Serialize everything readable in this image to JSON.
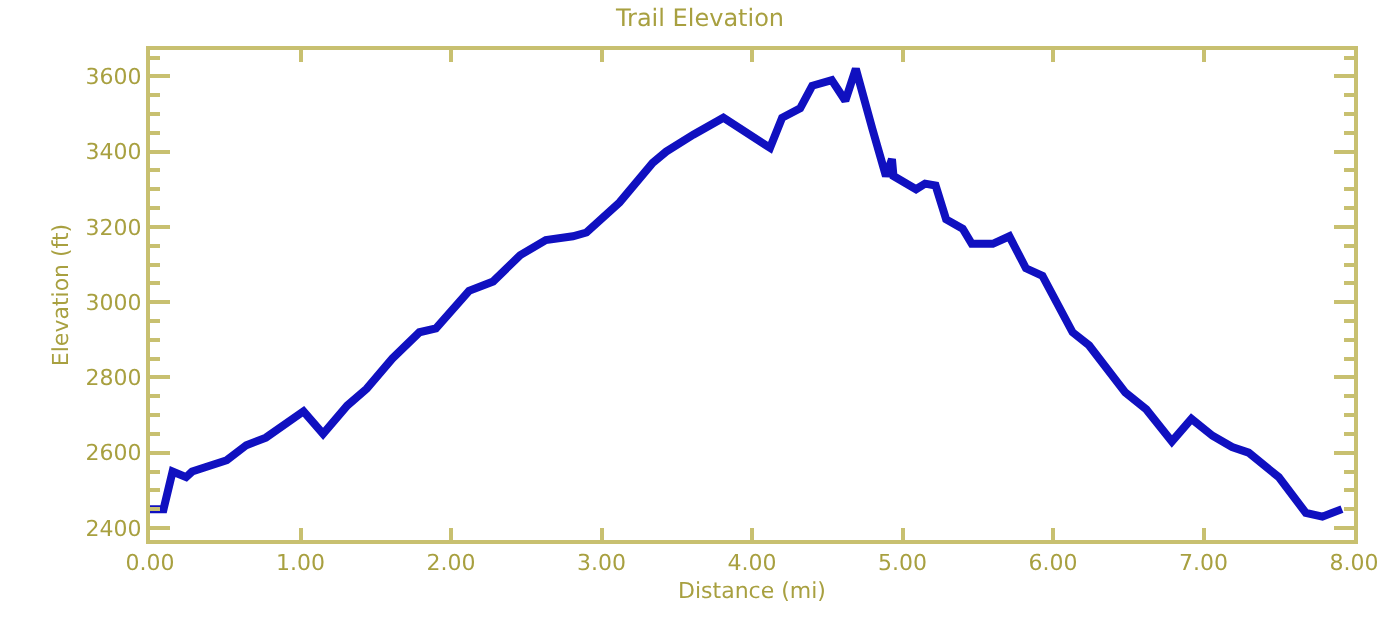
{
  "chart_data": {
    "type": "line",
    "title": "Trail Elevation",
    "xlabel": "Distance (mi)",
    "ylabel": "Elevation (ft)",
    "x": [
      0,
      0.09,
      0.15,
      0.24,
      0.28,
      0.51,
      0.64,
      0.77,
      1.02,
      1.15,
      1.31,
      1.44,
      1.61,
      1.79,
      1.9,
      2.12,
      2.28,
      2.46,
      2.63,
      2.81,
      2.9,
      3.12,
      3.34,
      3.43,
      3.61,
      3.81,
      4.12,
      4.2,
      4.32,
      4.4,
      4.53,
      4.62,
      4.69,
      4.8,
      4.89,
      4.93,
      4.94,
      5.09,
      5.15,
      5.22,
      5.29,
      5.4,
      5.46,
      5.6,
      5.71,
      5.82,
      5.93,
      6.13,
      6.24,
      6.48,
      6.62,
      6.79,
      6.92,
      7.06,
      7.19,
      7.3,
      7.5,
      7.68,
      7.79,
      7.92
    ],
    "series": [
      {
        "color": "#1010c0",
        "values": [
          2450,
          2450,
          2550,
          2535,
          2550,
          2580,
          2620,
          2640,
          2710,
          2650,
          2725,
          2770,
          2850,
          2920,
          2930,
          3030,
          3055,
          3125,
          3165,
          3175,
          3185,
          3265,
          3370,
          3400,
          3445,
          3490,
          3410,
          3490,
          3515,
          3575,
          3590,
          3535,
          3620,
          3460,
          3335,
          3380,
          3335,
          3300,
          3315,
          3310,
          3220,
          3195,
          3155,
          3155,
          3175,
          3090,
          3070,
          2920,
          2885,
          2760,
          2715,
          2630,
          2690,
          2645,
          2615,
          2600,
          2535,
          2440,
          2430,
          2450
        ]
      }
    ],
    "xlim": [
      0,
      8
    ],
    "xticks": [
      {
        "value": 0,
        "label": "0.00"
      },
      {
        "value": 1,
        "label": "1.00"
      },
      {
        "value": 2,
        "label": "2.00"
      },
      {
        "value": 3,
        "label": "3.00"
      },
      {
        "value": 4,
        "label": "4.00"
      },
      {
        "value": 5,
        "label": "5.00"
      },
      {
        "value": 6,
        "label": "6.00"
      },
      {
        "value": 7,
        "label": "7.00"
      },
      {
        "value": 8,
        "label": "8.00"
      }
    ],
    "ylim": [
      2368,
      3670
    ],
    "yticks": [
      2400,
      2600,
      2800,
      3000,
      3200,
      3400,
      3600
    ],
    "grid": false,
    "marker": "none",
    "line_style": "solid"
  }
}
